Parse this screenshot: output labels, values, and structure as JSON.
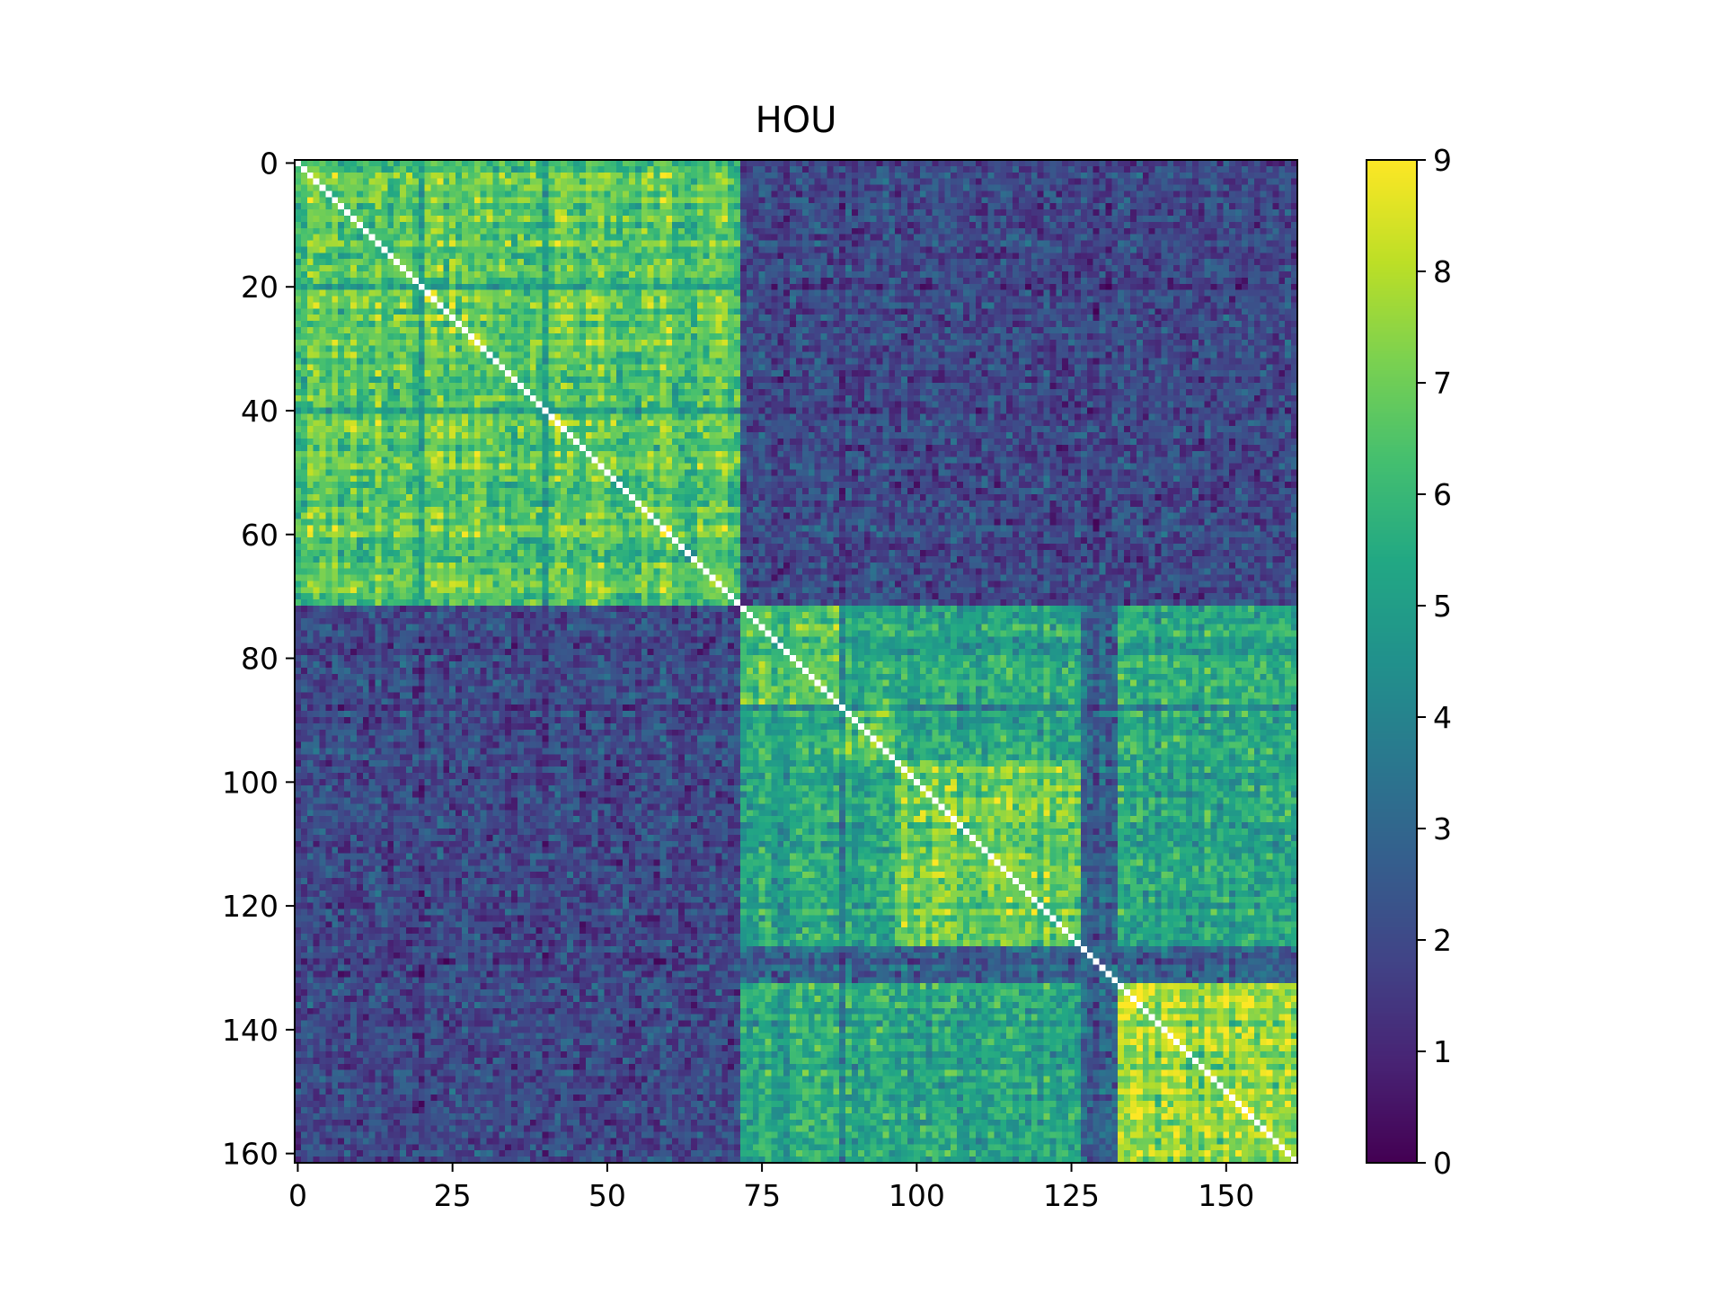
{
  "chart_data": {
    "type": "heatmap",
    "title": "HOU",
    "xlabel": "",
    "ylabel": "",
    "size": 162,
    "colormap": "viridis",
    "vmin": 0,
    "vmax": 9,
    "xlim": [
      0,
      161
    ],
    "ylim": [
      161,
      0
    ],
    "x_ticks": [
      0,
      25,
      50,
      75,
      100,
      125,
      150
    ],
    "y_ticks": [
      0,
      20,
      40,
      60,
      80,
      100,
      120,
      140,
      160
    ],
    "x_tick_labels": [
      "0",
      "25",
      "50",
      "75",
      "100",
      "125",
      "150"
    ],
    "y_tick_labels": [
      "0",
      "20",
      "40",
      "60",
      "80",
      "100",
      "120",
      "140",
      "160"
    ],
    "colorbar_ticks": [
      0,
      1,
      2,
      3,
      4,
      5,
      6,
      7,
      8,
      9
    ],
    "colorbar_tick_labels": [
      "0",
      "1",
      "2",
      "3",
      "4",
      "5",
      "6",
      "7",
      "8",
      "9"
    ],
    "diagonal": "white (self-similarity, unplotted)",
    "blocks": [
      {
        "rows": [
          0,
          72
        ],
        "cols": [
          0,
          72
        ],
        "mean": 6.2
      },
      {
        "rows": [
          72,
          88
        ],
        "cols": [
          72,
          88
        ],
        "mean": 5.6
      },
      {
        "rows": [
          88,
          97
        ],
        "cols": [
          88,
          97
        ],
        "mean": 5.8
      },
      {
        "rows": [
          97,
          127
        ],
        "cols": [
          97,
          127
        ],
        "mean": 6.4
      },
      {
        "rows": [
          127,
          133
        ],
        "cols": [
          127,
          133
        ],
        "mean": 3.0
      },
      {
        "rows": [
          133,
          162
        ],
        "cols": [
          133,
          162
        ],
        "mean": 6.8
      },
      {
        "rows": [
          0,
          72
        ],
        "cols": [
          72,
          162
        ],
        "mean": 1.8
      },
      {
        "rows": [
          72,
          162
        ],
        "cols": [
          72,
          162
        ],
        "mean": 4.8,
        "note": "off-diagonal sub-blocks"
      }
    ],
    "dark_bands": [
      20,
      40,
      88
    ],
    "notes": "162x162 pairwise matrix; two main communities (rows 0-71 and 72-161) with sub-blocks; cell values read approximately from colormap"
  }
}
